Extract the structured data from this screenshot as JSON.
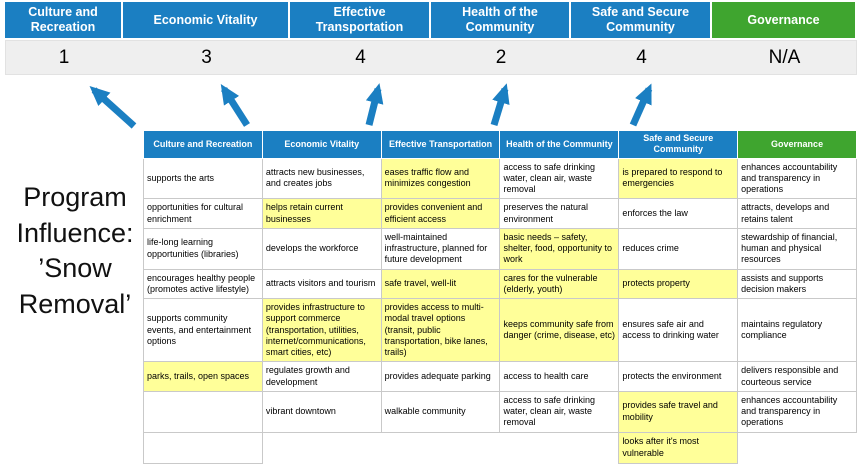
{
  "colors": {
    "category_blue": "#1b7fc2",
    "governance_green": "#3fa52f",
    "highlight_yellow": "#ffff99",
    "score_band_gray": "#efefef",
    "arrow_blue": "#1b7fc2"
  },
  "top": {
    "categories": [
      {
        "label": "Culture and Recreation",
        "score": "1"
      },
      {
        "label": "Economic Vitality",
        "score": "3"
      },
      {
        "label": "Effective Transportation",
        "score": "4"
      },
      {
        "label": "Health of the Community",
        "score": "2"
      },
      {
        "label": "Safe and Secure Community",
        "score": "4"
      },
      {
        "label": "Governance",
        "score": "N/A"
      }
    ]
  },
  "program_label": "Program\nInfluence:\n’Snow\nRemoval’",
  "table": {
    "headers": [
      "Culture and Recreation",
      "Economic Vitality",
      "Effective Transportation",
      "Health of the Community",
      "Safe and Secure Community",
      "Governance"
    ],
    "rows": [
      [
        {
          "t": "supports the arts",
          "h": false
        },
        {
          "t": "attracts new businesses, and creates jobs",
          "h": false
        },
        {
          "t": "eases traffic flow and minimizes congestion",
          "h": true
        },
        {
          "t": "access to safe drinking water, clean air, waste removal",
          "h": false
        },
        {
          "t": "is prepared to respond to emergencies",
          "h": true
        },
        {
          "t": "enhances accountability and transparency in operations",
          "h": false
        }
      ],
      [
        {
          "t": "opportunities for cultural enrichment",
          "h": false
        },
        {
          "t": "helps retain current businesses",
          "h": true
        },
        {
          "t": "provides convenient and efficient access",
          "h": true
        },
        {
          "t": "preserves the natural environment",
          "h": false
        },
        {
          "t": "enforces the law",
          "h": false
        },
        {
          "t": "attracts, develops and retains talent",
          "h": false
        }
      ],
      [
        {
          "t": "life-long learning opportunities (libraries)",
          "h": false
        },
        {
          "t": "develops the workforce",
          "h": false
        },
        {
          "t": "well-maintained infrastructure, planned for future development",
          "h": false
        },
        {
          "t": "basic needs – safety, shelter, food, opportunity to work",
          "h": true
        },
        {
          "t": "reduces crime",
          "h": false
        },
        {
          "t": "stewardship of financial, human and physical resources",
          "h": false
        }
      ],
      [
        {
          "t": "encourages healthy people (promotes active lifestyle)",
          "h": false
        },
        {
          "t": "attracts visitors and tourism",
          "h": false
        },
        {
          "t": "safe travel, well-lit",
          "h": true
        },
        {
          "t": "cares for the vulnerable (elderly, youth)",
          "h": true
        },
        {
          "t": "protects property",
          "h": true
        },
        {
          "t": "assists and supports decision makers",
          "h": false
        }
      ],
      [
        {
          "t": "supports community events, and entertainment options",
          "h": false
        },
        {
          "t": "provides infrastructure to support commerce (transportation, utilities, internet/communications, smart cities, etc)",
          "h": true
        },
        {
          "t": "provides access to multi-modal travel options (transit, public transportation, bike lanes, trails)",
          "h": true
        },
        {
          "t": "keeps community safe from danger (crime, disease, etc)",
          "h": true
        },
        {
          "t": "ensures safe air and access to drinking water",
          "h": false
        },
        {
          "t": "maintains regulatory compliance",
          "h": false
        }
      ],
      [
        {
          "t": "parks, trails, open spaces",
          "h": true
        },
        {
          "t": "regulates growth and development",
          "h": false
        },
        {
          "t": "provides adequate parking",
          "h": false
        },
        {
          "t": "access to health care",
          "h": false
        },
        {
          "t": "protects the environment",
          "h": false
        },
        {
          "t": "delivers responsible and courteous service",
          "h": false
        }
      ],
      [
        {
          "t": "",
          "h": false
        },
        {
          "t": "vibrant downtown",
          "h": false
        },
        {
          "t": "walkable community",
          "h": false
        },
        {
          "t": "access to safe drinking water, clean air, waste removal",
          "h": false
        },
        {
          "t": "provides safe travel and mobility",
          "h": true
        },
        {
          "t": "enhances accountability and transparency in operations",
          "h": false
        }
      ],
      [
        {
          "t": "",
          "h": false
        },
        {
          "t": "",
          "h": false,
          "nb": true
        },
        {
          "t": "",
          "h": false,
          "nb": true
        },
        {
          "t": "",
          "h": false,
          "nb": true
        },
        {
          "t": "looks after it's most vulnerable",
          "h": true
        },
        {
          "t": "",
          "h": false,
          "nb": true
        }
      ]
    ]
  }
}
